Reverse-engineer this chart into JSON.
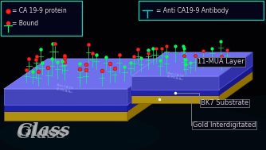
{
  "background_color": "#020205",
  "legend_border_color": "#00ddbb",
  "legend_text_color": "#dddddd",
  "legend_items": [
    {
      "label": "= CA 19-9 protein"
    },
    {
      "label": "= Bound"
    }
  ],
  "right_legend_label": "= Anti CA19-9 Antibody",
  "annotations": [
    {
      "text": "11-MUA Layer"
    },
    {
      "text": "BK7 Substrate"
    },
    {
      "text": "Gold Interdigitated"
    }
  ],
  "glass_text": "Glass",
  "glass_text_color": "#bbbbbb",
  "glass_text_fontsize": 16,
  "platform_top_color": "#7070ee",
  "platform_front_color": "#4444bb",
  "platform_right_color": "#3030aa",
  "bk7_front_color": "#2222aa",
  "bk7_top_color": "#1a1a99",
  "gold_color": "#b09010",
  "gold_top_color": "#c8a820",
  "stem_color": "#00ff77",
  "ball_red": "#ff2222",
  "ball_green": "#00ff55",
  "annotation_color": "#cccccc",
  "annotation_fontsize": 6.0,
  "connector_color": "#888888"
}
